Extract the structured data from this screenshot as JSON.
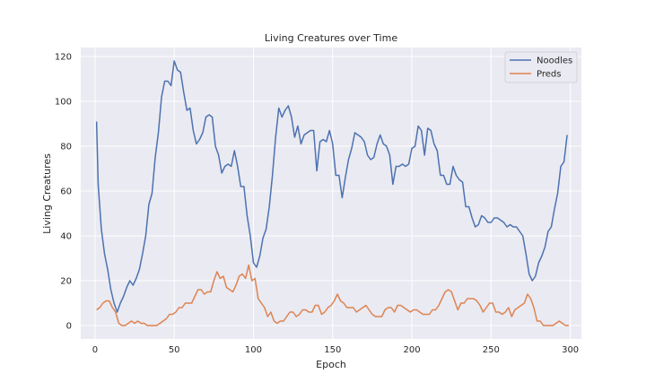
{
  "chart_data": {
    "type": "line",
    "title": "Living Creatures over Time",
    "xlabel": "Epoch",
    "ylabel": "Living Creatures",
    "xlim": [
      -9,
      307
    ],
    "ylim": [
      -6,
      124
    ],
    "xticks": [
      0,
      50,
      100,
      150,
      200,
      250,
      300
    ],
    "yticks": [
      0,
      20,
      40,
      60,
      80,
      100,
      120
    ],
    "grid": true,
    "background": "#eaeaf2",
    "legend_position": "top-right",
    "series": [
      {
        "name": "Noodles",
        "color": "#4c72b0",
        "points": [
          [
            1,
            91
          ],
          [
            2,
            63
          ],
          [
            4,
            43
          ],
          [
            6,
            32
          ],
          [
            8,
            25
          ],
          [
            10,
            16
          ],
          [
            12,
            10
          ],
          [
            14,
            6
          ],
          [
            16,
            10
          ],
          [
            18,
            13
          ],
          [
            20,
            17
          ],
          [
            22,
            20
          ],
          [
            24,
            18
          ],
          [
            26,
            21
          ],
          [
            28,
            25
          ],
          [
            30,
            32
          ],
          [
            32,
            40
          ],
          [
            34,
            54
          ],
          [
            36,
            59
          ],
          [
            38,
            75
          ],
          [
            40,
            86
          ],
          [
            42,
            102
          ],
          [
            44,
            109
          ],
          [
            46,
            109
          ],
          [
            48,
            107
          ],
          [
            50,
            118
          ],
          [
            52,
            114
          ],
          [
            54,
            113
          ],
          [
            56,
            104
          ],
          [
            58,
            96
          ],
          [
            60,
            97
          ],
          [
            62,
            87
          ],
          [
            64,
            81
          ],
          [
            66,
            83
          ],
          [
            68,
            86
          ],
          [
            70,
            93
          ],
          [
            72,
            94
          ],
          [
            74,
            93
          ],
          [
            76,
            80
          ],
          [
            78,
            76
          ],
          [
            80,
            68
          ],
          [
            82,
            71
          ],
          [
            84,
            72
          ],
          [
            86,
            71
          ],
          [
            88,
            78
          ],
          [
            90,
            71
          ],
          [
            92,
            62
          ],
          [
            94,
            62
          ],
          [
            96,
            49
          ],
          [
            98,
            40
          ],
          [
            100,
            28
          ],
          [
            102,
            26
          ],
          [
            104,
            31
          ],
          [
            106,
            39
          ],
          [
            108,
            43
          ],
          [
            110,
            53
          ],
          [
            112,
            67
          ],
          [
            114,
            84
          ],
          [
            116,
            97
          ],
          [
            118,
            93
          ],
          [
            120,
            96
          ],
          [
            122,
            98
          ],
          [
            124,
            93
          ],
          [
            126,
            84
          ],
          [
            128,
            89
          ],
          [
            130,
            81
          ],
          [
            132,
            85
          ],
          [
            134,
            86
          ],
          [
            136,
            87
          ],
          [
            138,
            87
          ],
          [
            140,
            69
          ],
          [
            142,
            82
          ],
          [
            144,
            83
          ],
          [
            146,
            82
          ],
          [
            148,
            87
          ],
          [
            150,
            81
          ],
          [
            152,
            67
          ],
          [
            154,
            67
          ],
          [
            156,
            57
          ],
          [
            158,
            66
          ],
          [
            160,
            74
          ],
          [
            162,
            79
          ],
          [
            164,
            86
          ],
          [
            166,
            85
          ],
          [
            168,
            84
          ],
          [
            170,
            82
          ],
          [
            172,
            76
          ],
          [
            174,
            74
          ],
          [
            176,
            75
          ],
          [
            178,
            81
          ],
          [
            180,
            85
          ],
          [
            182,
            81
          ],
          [
            184,
            80
          ],
          [
            186,
            76
          ],
          [
            188,
            63
          ],
          [
            190,
            71
          ],
          [
            192,
            71
          ],
          [
            194,
            72
          ],
          [
            196,
            71
          ],
          [
            198,
            72
          ],
          [
            200,
            79
          ],
          [
            202,
            80
          ],
          [
            204,
            89
          ],
          [
            206,
            87
          ],
          [
            208,
            76
          ],
          [
            210,
            88
          ],
          [
            212,
            87
          ],
          [
            214,
            81
          ],
          [
            216,
            78
          ],
          [
            218,
            67
          ],
          [
            220,
            67
          ],
          [
            222,
            63
          ],
          [
            224,
            63
          ],
          [
            226,
            71
          ],
          [
            228,
            67
          ],
          [
            230,
            65
          ],
          [
            232,
            64
          ],
          [
            234,
            53
          ],
          [
            236,
            53
          ],
          [
            238,
            48
          ],
          [
            240,
            44
          ],
          [
            242,
            45
          ],
          [
            244,
            49
          ],
          [
            246,
            48
          ],
          [
            248,
            46
          ],
          [
            250,
            46
          ],
          [
            252,
            48
          ],
          [
            254,
            48
          ],
          [
            256,
            47
          ],
          [
            258,
            46
          ],
          [
            260,
            44
          ],
          [
            262,
            45
          ],
          [
            264,
            44
          ],
          [
            266,
            44
          ],
          [
            268,
            42
          ],
          [
            270,
            40
          ],
          [
            272,
            32
          ],
          [
            274,
            23
          ],
          [
            276,
            20
          ],
          [
            278,
            22
          ],
          [
            280,
            28
          ],
          [
            282,
            31
          ],
          [
            284,
            35
          ],
          [
            286,
            42
          ],
          [
            288,
            44
          ],
          [
            290,
            52
          ],
          [
            292,
            59
          ],
          [
            294,
            71
          ],
          [
            296,
            73
          ],
          [
            298,
            85
          ]
        ]
      },
      {
        "name": "Preds",
        "color": "#dd8452",
        "points": [
          [
            1,
            7
          ],
          [
            3,
            8
          ],
          [
            5,
            10
          ],
          [
            7,
            11
          ],
          [
            9,
            11
          ],
          [
            11,
            8
          ],
          [
            13,
            6
          ],
          [
            15,
            1
          ],
          [
            17,
            0
          ],
          [
            19,
            0
          ],
          [
            21,
            1
          ],
          [
            23,
            2
          ],
          [
            25,
            1
          ],
          [
            27,
            2
          ],
          [
            29,
            1
          ],
          [
            31,
            1
          ],
          [
            33,
            0
          ],
          [
            35,
            0
          ],
          [
            37,
            0
          ],
          [
            39,
            0
          ],
          [
            41,
            1
          ],
          [
            43,
            2
          ],
          [
            45,
            3
          ],
          [
            47,
            5
          ],
          [
            49,
            5
          ],
          [
            51,
            6
          ],
          [
            53,
            8
          ],
          [
            55,
            8
          ],
          [
            57,
            10
          ],
          [
            59,
            10
          ],
          [
            61,
            10
          ],
          [
            63,
            13
          ],
          [
            65,
            16
          ],
          [
            67,
            16
          ],
          [
            69,
            14
          ],
          [
            71,
            15
          ],
          [
            73,
            15
          ],
          [
            75,
            20
          ],
          [
            77,
            24
          ],
          [
            79,
            21
          ],
          [
            81,
            22
          ],
          [
            83,
            17
          ],
          [
            85,
            16
          ],
          [
            87,
            15
          ],
          [
            89,
            18
          ],
          [
            91,
            22
          ],
          [
            93,
            23
          ],
          [
            95,
            21
          ],
          [
            97,
            27
          ],
          [
            99,
            20
          ],
          [
            101,
            21
          ],
          [
            103,
            12
          ],
          [
            105,
            10
          ],
          [
            107,
            8
          ],
          [
            109,
            4
          ],
          [
            111,
            6
          ],
          [
            113,
            2
          ],
          [
            115,
            1
          ],
          [
            117,
            2
          ],
          [
            119,
            2
          ],
          [
            121,
            4
          ],
          [
            123,
            6
          ],
          [
            125,
            6
          ],
          [
            127,
            4
          ],
          [
            129,
            5
          ],
          [
            131,
            7
          ],
          [
            133,
            7
          ],
          [
            135,
            6
          ],
          [
            137,
            6
          ],
          [
            139,
            9
          ],
          [
            141,
            9
          ],
          [
            143,
            5
          ],
          [
            145,
            6
          ],
          [
            147,
            8
          ],
          [
            149,
            9
          ],
          [
            151,
            11
          ],
          [
            153,
            14
          ],
          [
            155,
            11
          ],
          [
            157,
            10
          ],
          [
            159,
            8
          ],
          [
            161,
            8
          ],
          [
            163,
            8
          ],
          [
            165,
            6
          ],
          [
            167,
            7
          ],
          [
            169,
            8
          ],
          [
            171,
            9
          ],
          [
            173,
            7
          ],
          [
            175,
            5
          ],
          [
            177,
            4
          ],
          [
            179,
            4
          ],
          [
            181,
            4
          ],
          [
            183,
            7
          ],
          [
            185,
            8
          ],
          [
            187,
            8
          ],
          [
            189,
            6
          ],
          [
            191,
            9
          ],
          [
            193,
            9
          ],
          [
            195,
            8
          ],
          [
            197,
            7
          ],
          [
            199,
            6
          ],
          [
            201,
            7
          ],
          [
            203,
            7
          ],
          [
            205,
            6
          ],
          [
            207,
            5
          ],
          [
            209,
            5
          ],
          [
            211,
            5
          ],
          [
            213,
            7
          ],
          [
            215,
            7
          ],
          [
            217,
            9
          ],
          [
            219,
            12
          ],
          [
            221,
            15
          ],
          [
            223,
            16
          ],
          [
            225,
            15
          ],
          [
            227,
            11
          ],
          [
            229,
            7
          ],
          [
            231,
            10
          ],
          [
            233,
            10
          ],
          [
            235,
            12
          ],
          [
            237,
            12
          ],
          [
            239,
            12
          ],
          [
            241,
            11
          ],
          [
            243,
            9
          ],
          [
            245,
            6
          ],
          [
            247,
            8
          ],
          [
            249,
            10
          ],
          [
            251,
            10
          ],
          [
            253,
            6
          ],
          [
            255,
            6
          ],
          [
            257,
            5
          ],
          [
            259,
            6
          ],
          [
            261,
            8
          ],
          [
            263,
            4
          ],
          [
            265,
            7
          ],
          [
            267,
            8
          ],
          [
            269,
            9
          ],
          [
            271,
            10
          ],
          [
            273,
            14
          ],
          [
            275,
            12
          ],
          [
            277,
            8
          ],
          [
            279,
            2
          ],
          [
            281,
            2
          ],
          [
            283,
            0
          ],
          [
            285,
            0
          ],
          [
            287,
            0
          ],
          [
            289,
            0
          ],
          [
            291,
            1
          ],
          [
            293,
            2
          ],
          [
            295,
            1
          ],
          [
            297,
            0
          ],
          [
            299,
            0
          ]
        ]
      }
    ]
  }
}
